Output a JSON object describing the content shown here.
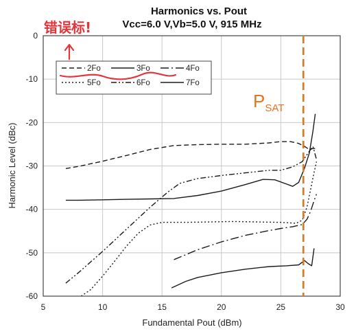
{
  "chart_data": {
    "type": "line",
    "title": "Harmonics vs. Pout",
    "subtitle": "Vcc=6.0 V,Vb=5.0 V, 915 MHz",
    "xlabel": "Fundamental Pout (dBm)",
    "ylabel": "Harmonic Level (dBc)",
    "xlim": [
      5,
      30
    ],
    "ylim": [
      -60,
      0
    ],
    "x_ticks": [
      "5",
      "10",
      "15",
      "20",
      "25",
      "30"
    ],
    "y_ticks": [
      "0",
      "-10",
      "-20",
      "-30",
      "-40",
      "-50",
      "-60"
    ],
    "grid": true,
    "legend_placement": "top-left",
    "series": [
      {
        "name": "2Fo",
        "dash": "7,4",
        "points": [
          [
            6.9,
            -30.6
          ],
          [
            8,
            -30.1
          ],
          [
            10,
            -28.9
          ],
          [
            12,
            -27.6
          ],
          [
            14,
            -26.2
          ],
          [
            16,
            -25.3
          ],
          [
            18,
            -25.1
          ],
          [
            20,
            -25.0
          ],
          [
            22,
            -25.0
          ],
          [
            24,
            -24.7
          ],
          [
            25,
            -24.4
          ],
          [
            25.8,
            -24.4
          ],
          [
            26.5,
            -24.8
          ],
          [
            27,
            -25.5
          ],
          [
            27.4,
            -26.2
          ],
          [
            27.7,
            -26.0
          ],
          [
            28,
            -26.0
          ]
        ]
      },
      {
        "name": "3Fo",
        "dash": "",
        "points": [
          [
            6.9,
            -37.9
          ],
          [
            8,
            -37.9
          ],
          [
            10,
            -37.8
          ],
          [
            12,
            -37.7
          ],
          [
            14,
            -37.6
          ],
          [
            16,
            -37.5
          ],
          [
            18,
            -36.8
          ],
          [
            20,
            -35.8
          ],
          [
            22,
            -34.3
          ],
          [
            23.5,
            -33.1
          ],
          [
            24.5,
            -33.2
          ],
          [
            25.5,
            -34.2
          ],
          [
            26,
            -34.7
          ],
          [
            26.5,
            -33.8
          ],
          [
            27,
            -30.5
          ],
          [
            27.4,
            -27.0
          ],
          [
            27.7,
            -22.0
          ],
          [
            27.9,
            -18.0
          ]
        ]
      },
      {
        "name": "4Fo",
        "dash": "12,4,2,4",
        "points": [
          [
            16,
            -51.6
          ],
          [
            18,
            -49.3
          ],
          [
            20,
            -47.5
          ],
          [
            22,
            -46.0
          ],
          [
            24,
            -44.9
          ],
          [
            25,
            -44.4
          ],
          [
            26,
            -44.0
          ],
          [
            26.8,
            -43.5
          ],
          [
            27.2,
            -42.3
          ],
          [
            27.5,
            -40.5
          ],
          [
            27.8,
            -38.0
          ],
          [
            28,
            -36.5
          ]
        ]
      },
      {
        "name": "5Fo",
        "dash": "2,3",
        "points": [
          [
            8.2,
            -60.0
          ],
          [
            9,
            -58.5
          ],
          [
            10,
            -55.4
          ],
          [
            11,
            -52.0
          ],
          [
            12,
            -48.5
          ],
          [
            13,
            -45.5
          ],
          [
            14,
            -43.6
          ],
          [
            15,
            -43.0
          ],
          [
            17,
            -43.0
          ],
          [
            19,
            -42.9
          ],
          [
            21,
            -42.8
          ],
          [
            23,
            -42.9
          ],
          [
            25,
            -43.0
          ],
          [
            26.3,
            -43.2
          ],
          [
            26.8,
            -42.5
          ],
          [
            27.2,
            -39.5
          ],
          [
            27.5,
            -35.5
          ],
          [
            27.8,
            -31.5
          ],
          [
            28,
            -29.0
          ]
        ]
      },
      {
        "name": "6Fo",
        "dash": "8,3,2,3,2,3",
        "points": [
          [
            6.9,
            -57.0
          ],
          [
            8,
            -54.5
          ],
          [
            10,
            -49.7
          ],
          [
            12,
            -44.6
          ],
          [
            14,
            -39.5
          ],
          [
            15.5,
            -36.0
          ],
          [
            16.5,
            -34.0
          ],
          [
            18,
            -32.9
          ],
          [
            20,
            -32.2
          ],
          [
            22,
            -31.6
          ],
          [
            24,
            -31.0
          ],
          [
            25,
            -31.0
          ],
          [
            26,
            -30.2
          ],
          [
            26.8,
            -29.0
          ],
          [
            27.3,
            -27.0
          ],
          [
            27.7,
            -25.5
          ],
          [
            28,
            -28.5
          ]
        ]
      },
      {
        "name": "7Fo",
        "dash": "",
        "points": [
          [
            15.8,
            -58.1
          ],
          [
            17,
            -56.6
          ],
          [
            18,
            -55.7
          ],
          [
            20,
            -54.6
          ],
          [
            22,
            -53.8
          ],
          [
            24,
            -53.2
          ],
          [
            25.5,
            -53.0
          ],
          [
            26.5,
            -52.8
          ],
          [
            27,
            -51.8
          ],
          [
            27.3,
            -52.5
          ],
          [
            27.6,
            -53.0
          ],
          [
            27.8,
            -49.0
          ]
        ]
      }
    ],
    "annotations": [
      {
        "text_main": "P",
        "text_sub": "SAT",
        "marker_line_x": 26.9,
        "color": "#e8721e"
      }
    ]
  },
  "handwriting": {
    "text": "错误标!",
    "color": "#e0353b"
  }
}
